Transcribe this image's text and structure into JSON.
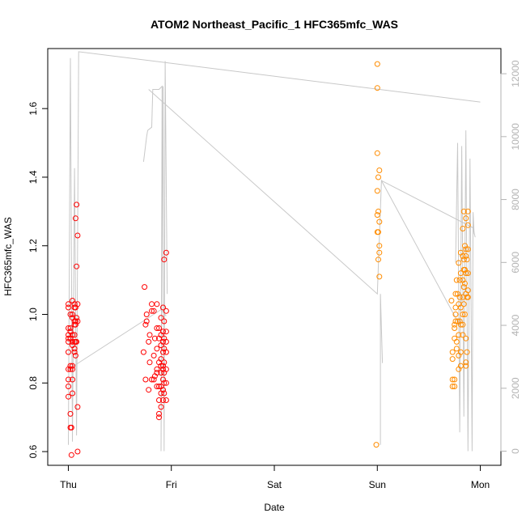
{
  "chart_data": {
    "type": "scatter",
    "title": "ATOM2 Northeast_Pacific_1 HFC365mfc_WAS",
    "xlabel": "Date",
    "ylabel": "HFC365mfc_WAS",
    "x_unit": "days",
    "x_ticks": [
      {
        "value": 0,
        "label": "Thu"
      },
      {
        "value": 1,
        "label": "Fri"
      },
      {
        "value": 2,
        "label": "Sat"
      },
      {
        "value": 3,
        "label": "Sun"
      },
      {
        "value": 4,
        "label": "Mon"
      }
    ],
    "xlim": [
      -0.2,
      4.2
    ],
    "ylim": [
      0.56,
      1.775
    ],
    "y_ticks": [
      0.6,
      0.8,
      1.0,
      1.2,
      1.4,
      1.6
    ],
    "y2lim": [
      -450,
      12800
    ],
    "y2_ticks": [
      0,
      2000,
      4000,
      6000,
      8000,
      10000,
      12000
    ],
    "colors": {
      "series_1": "#ff0000",
      "series_2": "#ff8c00",
      "altitude": "#c8c8c8"
    },
    "series": [
      {
        "color": "#ff0000",
        "points": [
          [
            0.0,
            1.02
          ],
          [
            0.0,
            1.03
          ],
          [
            0.0,
            0.96
          ],
          [
            0.0,
            0.94
          ],
          [
            0.0,
            0.93
          ],
          [
            0.0,
            0.92
          ],
          [
            0.0,
            0.89
          ],
          [
            0.0,
            0.84
          ],
          [
            0.0,
            0.81
          ],
          [
            0.0,
            0.79
          ],
          [
            0.0,
            0.76
          ],
          [
            0.02,
            1.0
          ],
          [
            0.02,
            0.96
          ],
          [
            0.02,
            0.95
          ],
          [
            0.02,
            0.93
          ],
          [
            0.02,
            0.85
          ],
          [
            0.02,
            0.84
          ],
          [
            0.02,
            0.71
          ],
          [
            0.02,
            0.67
          ],
          [
            0.03,
            0.67
          ],
          [
            0.03,
            0.59
          ],
          [
            0.04,
            1.04
          ],
          [
            0.04,
            1.0
          ],
          [
            0.04,
            0.99
          ],
          [
            0.04,
            0.94
          ],
          [
            0.04,
            0.92
          ],
          [
            0.04,
            0.91
          ],
          [
            0.04,
            0.85
          ],
          [
            0.04,
            0.84
          ],
          [
            0.04,
            0.81
          ],
          [
            0.04,
            0.77
          ],
          [
            0.06,
            1.03
          ],
          [
            0.06,
            1.02
          ],
          [
            0.06,
            0.98
          ],
          [
            0.06,
            0.97
          ],
          [
            0.06,
            0.94
          ],
          [
            0.06,
            0.92
          ],
          [
            0.06,
            0.9
          ],
          [
            0.06,
            0.89
          ],
          [
            0.07,
            1.28
          ],
          [
            0.07,
            1.02
          ],
          [
            0.07,
            0.98
          ],
          [
            0.07,
            0.97
          ],
          [
            0.07,
            0.92
          ],
          [
            0.07,
            0.88
          ],
          [
            0.08,
            1.32
          ],
          [
            0.08,
            1.14
          ],
          [
            0.08,
            0.99
          ],
          [
            0.08,
            0.92
          ],
          [
            0.09,
            1.23
          ],
          [
            0.09,
            1.03
          ],
          [
            0.09,
            0.98
          ],
          [
            0.09,
            0.73
          ],
          [
            0.09,
            0.6
          ],
          [
            0.74,
            1.08
          ],
          [
            0.73,
            0.89
          ],
          [
            0.75,
            0.97
          ],
          [
            0.75,
            0.81
          ],
          [
            0.76,
            1.0
          ],
          [
            0.76,
            0.98
          ],
          [
            0.78,
            0.92
          ],
          [
            0.78,
            0.78
          ],
          [
            0.79,
            0.94
          ],
          [
            0.79,
            0.86
          ],
          [
            0.81,
            1.03
          ],
          [
            0.81,
            1.01
          ],
          [
            0.81,
            0.81
          ],
          [
            0.83,
            1.01
          ],
          [
            0.83,
            0.88
          ],
          [
            0.83,
            0.81
          ],
          [
            0.84,
            0.93
          ],
          [
            0.84,
            0.82
          ],
          [
            0.86,
            1.03
          ],
          [
            0.86,
            0.96
          ],
          [
            0.86,
            0.9
          ],
          [
            0.86,
            0.84
          ],
          [
            0.86,
            0.83
          ],
          [
            0.86,
            0.79
          ],
          [
            0.88,
            0.96
          ],
          [
            0.88,
            0.93
          ],
          [
            0.88,
            0.86
          ],
          [
            0.88,
            0.79
          ],
          [
            0.88,
            0.75
          ],
          [
            0.88,
            0.71
          ],
          [
            0.88,
            0.7
          ],
          [
            0.9,
            0.99
          ],
          [
            0.9,
            0.94
          ],
          [
            0.9,
            0.91
          ],
          [
            0.9,
            0.87
          ],
          [
            0.9,
            0.85
          ],
          [
            0.9,
            0.83
          ],
          [
            0.9,
            0.79
          ],
          [
            0.9,
            0.77
          ],
          [
            0.9,
            0.73
          ],
          [
            0.92,
            1.02
          ],
          [
            0.92,
            0.95
          ],
          [
            0.92,
            0.92
          ],
          [
            0.92,
            0.89
          ],
          [
            0.92,
            0.85
          ],
          [
            0.92,
            0.84
          ],
          [
            0.92,
            0.81
          ],
          [
            0.92,
            0.78
          ],
          [
            0.92,
            0.75
          ],
          [
            0.93,
            1.16
          ],
          [
            0.93,
            0.98
          ],
          [
            0.93,
            0.93
          ],
          [
            0.93,
            0.9
          ],
          [
            0.93,
            0.86
          ],
          [
            0.93,
            0.83
          ],
          [
            0.93,
            0.8
          ],
          [
            0.93,
            0.77
          ],
          [
            0.95,
            1.18
          ],
          [
            0.95,
            1.01
          ],
          [
            0.95,
            0.95
          ],
          [
            0.95,
            0.92
          ],
          [
            0.95,
            0.89
          ],
          [
            0.95,
            0.84
          ],
          [
            0.95,
            0.8
          ],
          [
            0.95,
            0.75
          ]
        ]
      },
      {
        "color": "#ff8c00",
        "points": [
          [
            3.0,
            1.73
          ],
          [
            3.0,
            1.66
          ],
          [
            3.0,
            1.47
          ],
          [
            3.01,
            1.4
          ],
          [
            3.02,
            1.42
          ],
          [
            3.0,
            1.36
          ],
          [
            3.0,
            1.29
          ],
          [
            3.01,
            1.3
          ],
          [
            3.02,
            1.27
          ],
          [
            3.0,
            1.24
          ],
          [
            3.01,
            1.24
          ],
          [
            3.02,
            1.2
          ],
          [
            3.02,
            1.18
          ],
          [
            3.01,
            1.16
          ],
          [
            3.02,
            1.11
          ],
          [
            2.99,
            0.62
          ],
          [
            3.72,
            1.04
          ],
          [
            3.73,
            0.89
          ],
          [
            3.73,
            0.87
          ],
          [
            3.73,
            0.81
          ],
          [
            3.73,
            0.79
          ],
          [
            3.75,
            0.97
          ],
          [
            3.75,
            0.96
          ],
          [
            3.75,
            0.93
          ],
          [
            3.75,
            0.81
          ],
          [
            3.75,
            0.79
          ],
          [
            3.76,
            1.06
          ],
          [
            3.76,
            1.02
          ],
          [
            3.76,
            1.0
          ],
          [
            3.76,
            0.98
          ],
          [
            3.77,
            1.1
          ],
          [
            3.77,
            0.92
          ],
          [
            3.77,
            0.9
          ],
          [
            3.78,
            1.06
          ],
          [
            3.78,
            0.98
          ],
          [
            3.79,
            1.15
          ],
          [
            3.79,
            1.03
          ],
          [
            3.79,
            0.94
          ],
          [
            3.79,
            0.88
          ],
          [
            3.79,
            0.84
          ],
          [
            3.8,
            1.1
          ],
          [
            3.8,
            1.05
          ],
          [
            3.8,
            0.98
          ],
          [
            3.81,
            1.18
          ],
          [
            3.81,
            1.12
          ],
          [
            3.81,
            1.02
          ],
          [
            3.81,
            0.97
          ],
          [
            3.81,
            0.89
          ],
          [
            3.81,
            0.85
          ],
          [
            3.83,
            1.25
          ],
          [
            3.83,
            1.17
          ],
          [
            3.83,
            1.1
          ],
          [
            3.83,
            1.05
          ],
          [
            3.83,
            1.0
          ],
          [
            3.83,
            0.97
          ],
          [
            3.83,
            0.94
          ],
          [
            3.84,
            1.3
          ],
          [
            3.84,
            1.16
          ],
          [
            3.84,
            1.13
          ],
          [
            3.84,
            1.08
          ],
          [
            3.84,
            1.03
          ],
          [
            3.85,
            1.2
          ],
          [
            3.85,
            1.13
          ],
          [
            3.85,
            1.09
          ],
          [
            3.85,
            1.0
          ],
          [
            3.86,
            1.28
          ],
          [
            3.86,
            1.19
          ],
          [
            3.86,
            1.17
          ],
          [
            3.86,
            1.12
          ],
          [
            3.86,
            1.06
          ],
          [
            3.86,
            0.93
          ],
          [
            3.86,
            0.86
          ],
          [
            3.86,
            0.85
          ],
          [
            3.87,
            1.16
          ],
          [
            3.87,
            1.05
          ],
          [
            3.87,
            0.89
          ],
          [
            3.88,
            1.3
          ],
          [
            3.88,
            1.26
          ],
          [
            3.88,
            1.19
          ],
          [
            3.88,
            1.12
          ],
          [
            3.88,
            1.07
          ],
          [
            3.88,
            1.05
          ]
        ]
      }
    ],
    "altitude_segments": [
      [
        [
          0.0,
          200
        ],
        [
          0.02,
          12500
        ],
        [
          0.04,
          300
        ],
        [
          0.06,
          9000
        ],
        [
          0.08,
          500
        ],
        [
          0.1,
          12700
        ],
        [
          4.0,
          11100
        ]
      ],
      [
        [
          0.0,
          2600
        ],
        [
          0.9,
          4500
        ],
        [
          0.95,
          4300
        ]
      ],
      [
        [
          0.73,
          9200
        ],
        [
          0.76,
          10000
        ],
        [
          0.77,
          10200
        ],
        [
          0.81,
          10300
        ],
        [
          0.82,
          11500
        ],
        [
          0.88,
          11500
        ],
        [
          0.91,
          11600
        ],
        [
          0.9,
          0
        ],
        [
          0.92,
          11600
        ],
        [
          0.93,
          0
        ],
        [
          0.94,
          12400
        ],
        [
          0.96,
          5000
        ]
      ],
      [
        [
          0.78,
          11500
        ],
        [
          3.0,
          5000
        ],
        [
          3.04,
          8600
        ],
        [
          3.8,
          4000
        ],
        [
          3.82,
          5000
        ]
      ],
      [
        [
          3.03,
          200
        ],
        [
          3.03,
          5000
        ],
        [
          3.05,
          2800
        ]
      ],
      [
        [
          3.04,
          8600
        ],
        [
          3.93,
          7100
        ],
        [
          3.95,
          6800
        ]
      ],
      [
        [
          3.76,
          6000
        ],
        [
          3.78,
          9800
        ],
        [
          3.8,
          600
        ],
        [
          3.82,
          9700
        ],
        [
          3.84,
          1100
        ],
        [
          3.86,
          10200
        ],
        [
          3.88,
          0
        ],
        [
          3.9,
          9300
        ],
        [
          3.92,
          0
        ],
        [
          3.93,
          7600
        ],
        [
          3.94,
          6900
        ]
      ]
    ]
  }
}
